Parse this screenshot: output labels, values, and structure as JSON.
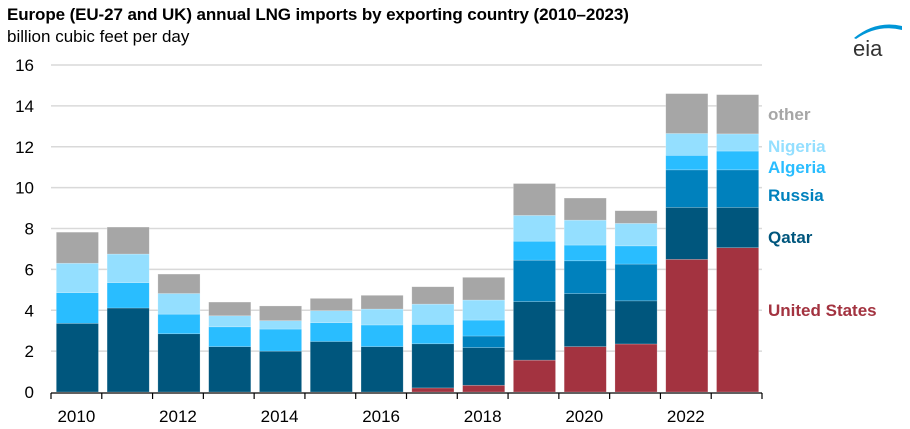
{
  "chart_data": {
    "type": "bar",
    "stacked": true,
    "title": "Europe (EU-27 and UK) annual LNG imports by exporting country (2010–2023)",
    "subtitle": "billion cubic feet per day",
    "xlabel": "",
    "ylabel": "billion cubic feet per day",
    "ylim": [
      0,
      16
    ],
    "yticks": [
      "0",
      "2",
      "4",
      "6",
      "8",
      "10",
      "12",
      "14",
      "16"
    ],
    "categories": [
      "2010",
      "2011",
      "2012",
      "2013",
      "2014",
      "2015",
      "2016",
      "2017",
      "2018",
      "2019",
      "2020",
      "2021",
      "2022",
      "2023"
    ],
    "xtick_labels": [
      "2010",
      "",
      "2012",
      "",
      "2014",
      "",
      "2016",
      "",
      "2018",
      "",
      "2020",
      "",
      "2022",
      ""
    ],
    "grid": "horizontal",
    "legend_placement": "right (inline labels)",
    "series": [
      {
        "name": "United States",
        "color": "#A33340",
        "values": [
          0,
          0,
          0,
          0,
          0,
          0,
          0,
          0.2,
          0.33,
          1.56,
          2.22,
          2.35,
          6.49,
          7.06
        ]
      },
      {
        "name": "Qatar",
        "color": "#00567D",
        "values": [
          3.36,
          4.11,
          2.85,
          2.22,
          2.0,
          2.47,
          2.22,
          2.16,
          1.84,
          2.86,
          2.59,
          2.11,
          2.54,
          1.97
        ]
      },
      {
        "name": "Russia",
        "color": "#0081BD",
        "values": [
          0,
          0,
          0,
          0,
          0,
          0,
          0,
          0,
          0.57,
          2.03,
          1.61,
          1.8,
          1.84,
          1.84
        ]
      },
      {
        "name": "Algeria",
        "color": "#29BDFF",
        "values": [
          1.5,
          1.24,
          0.96,
          0.97,
          1.08,
          0.92,
          1.06,
          0.95,
          0.78,
          0.93,
          0.77,
          0.89,
          0.71,
          0.92
        ]
      },
      {
        "name": "Nigeria",
        "color": "#94DFFF",
        "values": [
          1.44,
          1.4,
          1.01,
          0.54,
          0.41,
          0.59,
          0.78,
          0.99,
          0.98,
          1.26,
          1.22,
          1.1,
          1.07,
          0.84
        ]
      },
      {
        "name": "other",
        "color": "#A6A6A6",
        "values": [
          1.52,
          1.32,
          0.95,
          0.67,
          0.72,
          0.6,
          0.67,
          0.85,
          1.11,
          1.56,
          1.08,
          0.62,
          1.95,
          1.92
        ]
      }
    ]
  },
  "header": {
    "title": "Europe (EU-27 and UK) annual LNG imports by exporting country (2010–2023)",
    "subtitle": "billion cubic feet per day",
    "logo_text": "eia"
  }
}
